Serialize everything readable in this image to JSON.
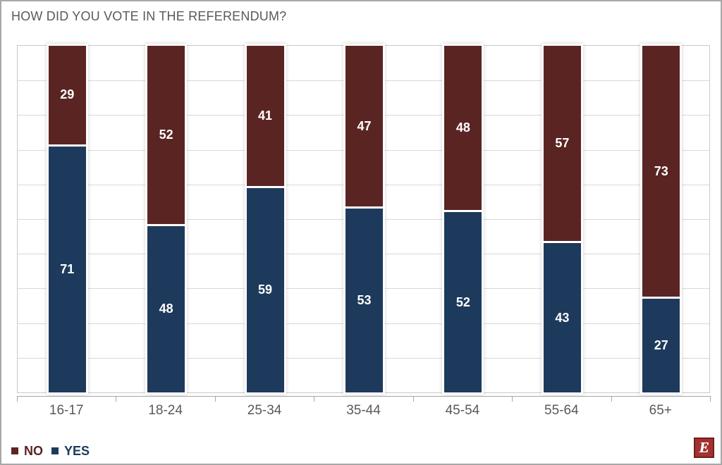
{
  "title": "HOW DID YOU VOTE IN THE REFERENDUM?",
  "chart_data": {
    "type": "bar",
    "stacked": true,
    "orientation": "vertical",
    "title": "HOW DID YOU VOTE IN THE REFERENDUM?",
    "categories": [
      "16-17",
      "18-24",
      "25-34",
      "35-44",
      "45-54",
      "55-64",
      "65+"
    ],
    "series": [
      {
        "name": "NO",
        "color": "#5a2422",
        "values": [
          29,
          52,
          41,
          47,
          48,
          57,
          73
        ]
      },
      {
        "name": "YES",
        "color": "#1d3a5c",
        "values": [
          71,
          48,
          59,
          53,
          52,
          43,
          27
        ]
      }
    ],
    "stack_order_top_to_bottom": [
      "NO",
      "YES"
    ],
    "xlabel": "",
    "ylabel": "",
    "ylim": [
      0,
      100
    ],
    "gridline_interval": 10,
    "grid": true,
    "y_axis_labels_visible": false,
    "data_labels": "white bold centered in each segment",
    "legend_position": "bottom-left"
  },
  "legend": {
    "items": [
      {
        "label": "NO",
        "color": "#5a2422"
      },
      {
        "label": "YES",
        "color": "#1d3a5c"
      }
    ]
  },
  "logo": {
    "letter": "E",
    "background": "#a23231",
    "border": "#701d1c"
  },
  "colors": {
    "title_text": "#595959",
    "axis_text": "#595959",
    "gridline": "#d9d9d9",
    "axis_line": "#a6a6a6",
    "outer_border": "#a8a8a8",
    "bar_outline": "#ffffff"
  }
}
